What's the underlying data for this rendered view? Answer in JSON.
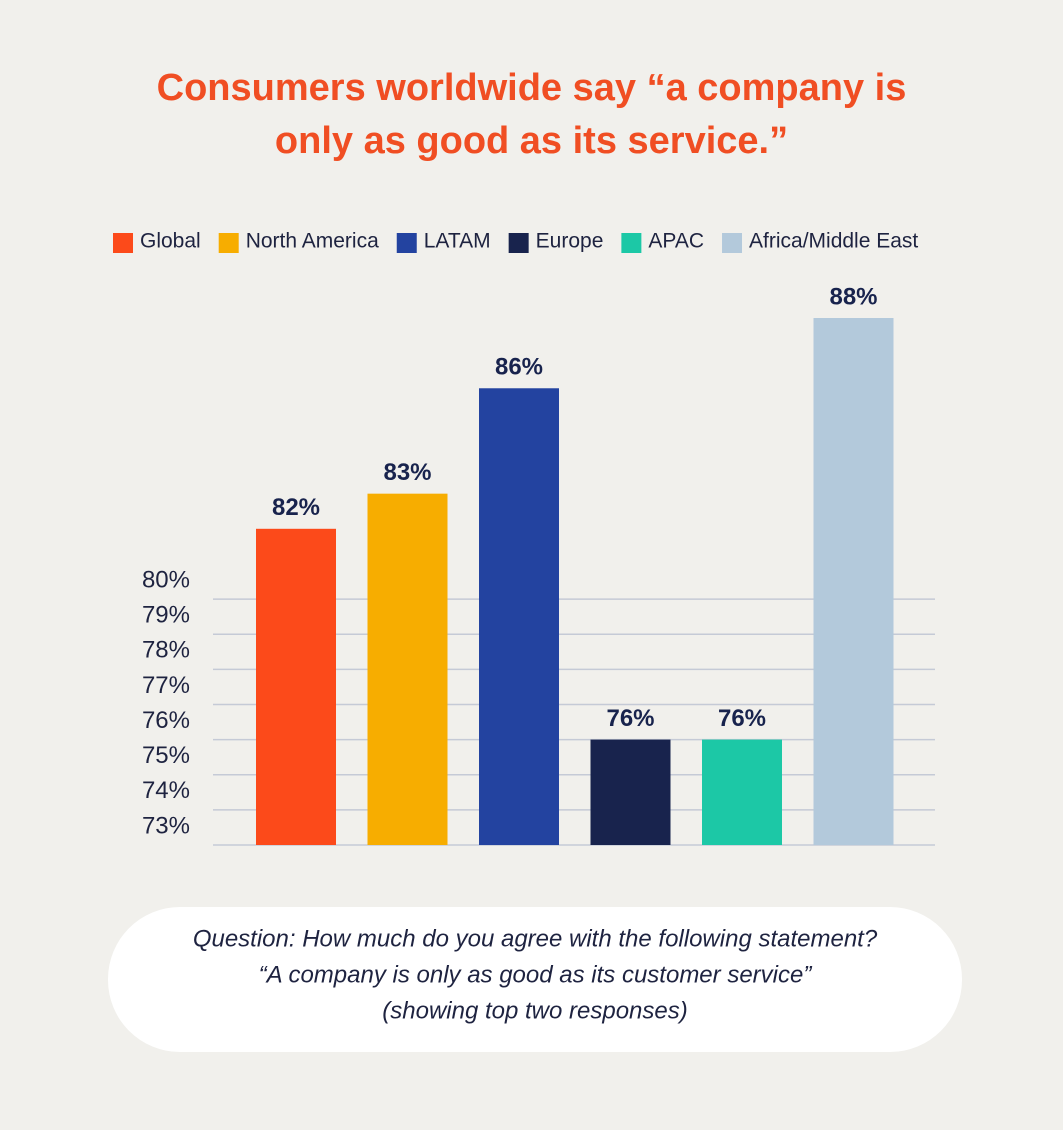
{
  "chart_data": {
    "type": "bar",
    "title": "Consumers worldwide say “a company is only as good as its service.”",
    "categories": [
      "Global",
      "North America",
      "LATAM",
      "Europe",
      "APAC",
      "Africa/Middle East"
    ],
    "values": [
      82,
      83,
      86,
      76,
      76,
      88
    ],
    "value_labels": [
      "82%",
      "83%",
      "86%",
      "76%",
      "76%",
      "88%"
    ],
    "colors": [
      "#fc4a1a",
      "#f7ad00",
      "#2343a0",
      "#18234d",
      "#1cc8a6",
      "#b3c9db"
    ],
    "ylim": [
      73,
      88
    ],
    "yticks": [
      {
        "value": 73,
        "label": "73%"
      },
      {
        "value": 74,
        "label": "74%"
      },
      {
        "value": 75,
        "label": "75%"
      },
      {
        "value": 76,
        "label": "76%"
      },
      {
        "value": 77,
        "label": "77%"
      },
      {
        "value": 78,
        "label": "78%"
      },
      {
        "value": 79,
        "label": "79%"
      },
      {
        "value": 80,
        "label": "80%"
      }
    ],
    "grid": true,
    "note": [
      "Question: How much do you agree with the following statement?",
      "“A company is only as good as its customer service”",
      "(showing top two responses)"
    ]
  }
}
